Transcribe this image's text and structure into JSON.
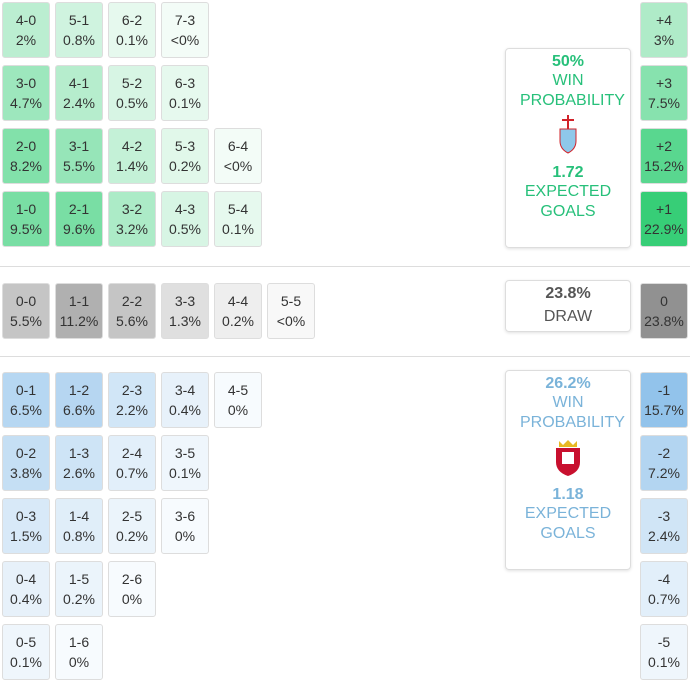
{
  "home": {
    "rows": [
      [
        {
          "score": "4-0",
          "prob": "2%"
        },
        {
          "score": "5-1",
          "prob": "0.8%"
        },
        {
          "score": "6-2",
          "prob": "0.1%"
        },
        {
          "score": "7-3",
          "prob": "<0%"
        }
      ],
      [
        {
          "score": "3-0",
          "prob": "4.7%"
        },
        {
          "score": "4-1",
          "prob": "2.4%"
        },
        {
          "score": "5-2",
          "prob": "0.5%"
        },
        {
          "score": "6-3",
          "prob": "0.1%"
        }
      ],
      [
        {
          "score": "2-0",
          "prob": "8.2%"
        },
        {
          "score": "3-1",
          "prob": "5.5%"
        },
        {
          "score": "4-2",
          "prob": "1.4%"
        },
        {
          "score": "5-3",
          "prob": "0.2%"
        },
        {
          "score": "6-4",
          "prob": "<0%"
        }
      ],
      [
        {
          "score": "1-0",
          "prob": "9.5%"
        },
        {
          "score": "2-1",
          "prob": "9.6%"
        },
        {
          "score": "3-2",
          "prob": "3.2%"
        },
        {
          "score": "4-3",
          "prob": "0.5%"
        },
        {
          "score": "5-4",
          "prob": "0.1%"
        }
      ]
    ],
    "margins": [
      {
        "score": "+4",
        "prob": "3%"
      },
      {
        "score": "+3",
        "prob": "7.5%"
      },
      {
        "score": "+2",
        "prob": "15.2%"
      },
      {
        "score": "+1",
        "prob": "22.9%"
      }
    ],
    "summary": {
      "win": "50%",
      "win_label": "WIN PROBABILITY",
      "xg": "1.72",
      "xg_label": "EXPECTED GOALS"
    }
  },
  "draw": {
    "rows": [
      [
        {
          "score": "0-0",
          "prob": "5.5%"
        },
        {
          "score": "1-1",
          "prob": "11.2%"
        },
        {
          "score": "2-2",
          "prob": "5.6%"
        },
        {
          "score": "3-3",
          "prob": "1.3%"
        },
        {
          "score": "4-4",
          "prob": "0.2%"
        },
        {
          "score": "5-5",
          "prob": "<0%"
        }
      ]
    ],
    "margins": [
      {
        "score": "0",
        "prob": "23.8%"
      }
    ],
    "summary": {
      "win": "23.8%",
      "win_label": "DRAW"
    }
  },
  "away": {
    "rows": [
      [
        {
          "score": "0-1",
          "prob": "6.5%"
        },
        {
          "score": "1-2",
          "prob": "6.6%"
        },
        {
          "score": "2-3",
          "prob": "2.2%"
        },
        {
          "score": "3-4",
          "prob": "0.4%"
        },
        {
          "score": "4-5",
          "prob": "0%"
        }
      ],
      [
        {
          "score": "0-2",
          "prob": "3.8%"
        },
        {
          "score": "1-3",
          "prob": "2.6%"
        },
        {
          "score": "2-4",
          "prob": "0.7%"
        },
        {
          "score": "3-5",
          "prob": "0.1%"
        }
      ],
      [
        {
          "score": "0-3",
          "prob": "1.5%"
        },
        {
          "score": "1-4",
          "prob": "0.8%"
        },
        {
          "score": "2-5",
          "prob": "0.2%"
        },
        {
          "score": "3-6",
          "prob": "0%"
        }
      ],
      [
        {
          "score": "0-4",
          "prob": "0.4%"
        },
        {
          "score": "1-5",
          "prob": "0.2%"
        },
        {
          "score": "2-6",
          "prob": "0%"
        }
      ],
      [
        {
          "score": "0-5",
          "prob": "0.1%"
        },
        {
          "score": "1-6",
          "prob": "0%"
        }
      ]
    ],
    "margins": [
      {
        "score": "-1",
        "prob": "15.7%"
      },
      {
        "score": "-2",
        "prob": "7.2%"
      },
      {
        "score": "-3",
        "prob": "2.4%"
      },
      {
        "score": "-4",
        "prob": "0.7%"
      },
      {
        "score": "-5",
        "prob": "0.1%"
      }
    ],
    "summary": {
      "win": "26.2%",
      "win_label": "WIN PROBABILITY",
      "xg": "1.18",
      "xg_label": "EXPECTED GOALS"
    }
  }
}
